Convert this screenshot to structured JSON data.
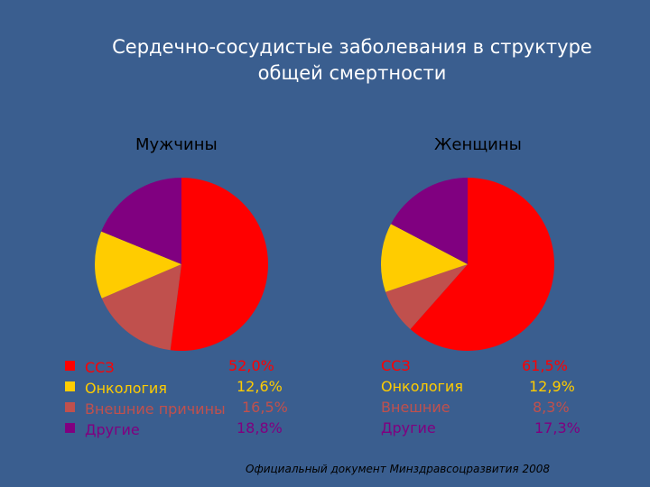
{
  "title_line1": "Сердечно-сосудистые заболевания в структуре",
  "title_line2": "общей смертности",
  "source": "Официальный документ Минздравсоцразвития 2008",
  "colors": {
    "background": "#3A5E8F",
    "cvd": "#FF0000",
    "oncology": "#FFCC00",
    "external": "#C0504D",
    "other": "#800080"
  },
  "chart_data": [
    {
      "type": "pie",
      "title": "Мужчины",
      "categories": [
        "ССЗ",
        "Онкология",
        "Внешние причины",
        "Другие"
      ],
      "values": [
        52.0,
        12.6,
        16.5,
        18.8
      ],
      "value_labels": [
        "52,0%",
        "12,6%",
        "16,5%",
        "18,8%"
      ]
    },
    {
      "type": "pie",
      "title": "Женщины",
      "categories": [
        "ССЗ",
        "Онкология",
        "Внешние",
        "Другие"
      ],
      "values": [
        61.5,
        12.9,
        8.3,
        17.3
      ],
      "value_labels": [
        "61,5%",
        "12,9%",
        "8,3%",
        "17,3%"
      ]
    }
  ]
}
